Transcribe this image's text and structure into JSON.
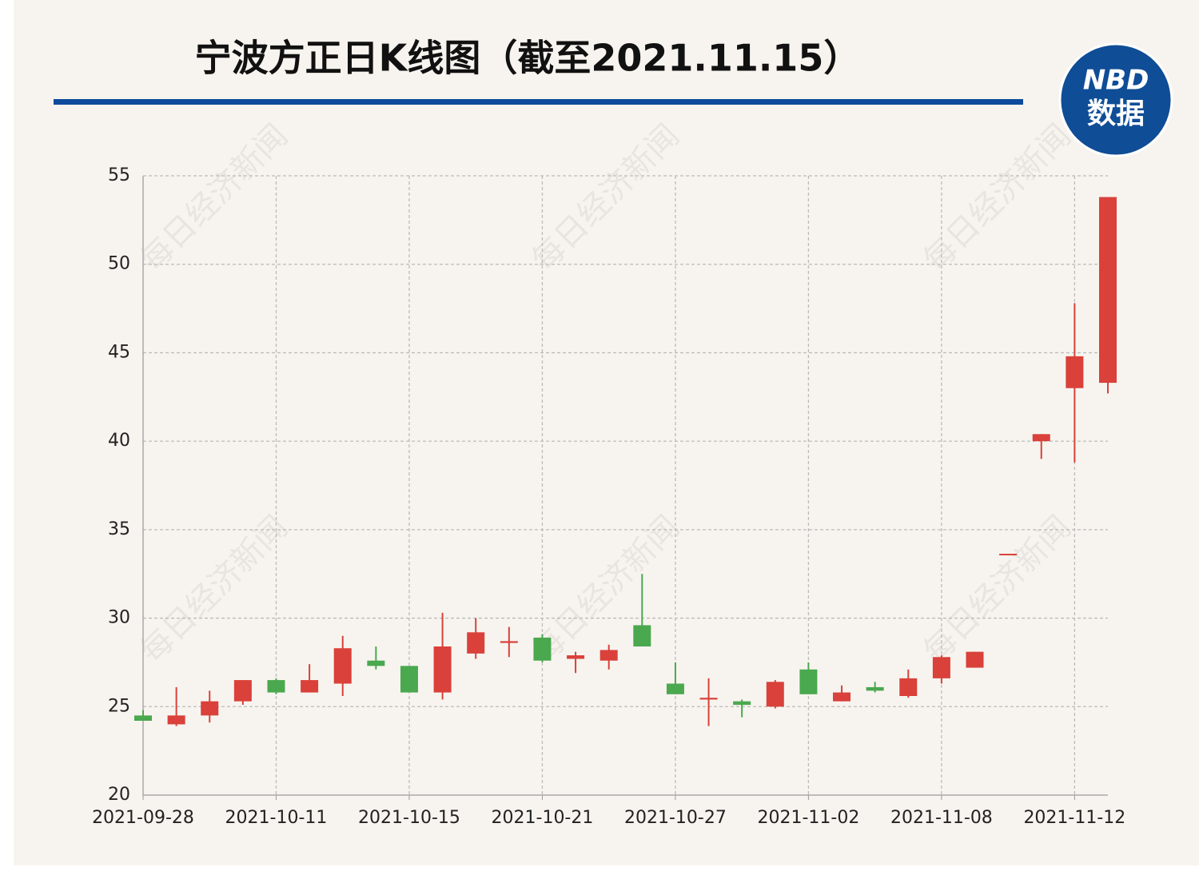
{
  "chart_data": {
    "type": "candlestick",
    "title": "宁波方正日K线图（截至2021.11.15）",
    "logo": {
      "top": "NBD",
      "bottom": "数据"
    },
    "watermark": "每日经济新闻",
    "categories": [
      "2021-09-28",
      null,
      null,
      null,
      "2021-10-11",
      null,
      null,
      null,
      "2021-10-15",
      null,
      null,
      null,
      "2021-10-21",
      null,
      null,
      null,
      "2021-10-27",
      null,
      null,
      null,
      "2021-11-02",
      null,
      null,
      null,
      "2021-11-08",
      null,
      null,
      null,
      "2021-11-12",
      null
    ],
    "open": [
      24.5,
      24.0,
      24.5,
      25.3,
      26.5,
      25.8,
      26.3,
      27.6,
      27.3,
      25.8,
      28.0,
      28.6,
      28.9,
      27.7,
      27.6,
      29.6,
      26.3,
      25.4,
      25.3,
      25.0,
      27.1,
      25.3,
      26.1,
      25.6,
      26.6,
      27.2,
      33.64,
      40.0,
      43.0,
      43.3
    ],
    "high": [
      24.8,
      26.1,
      25.9,
      26.5,
      26.6,
      27.4,
      29.0,
      28.4,
      27.3,
      30.3,
      30.0,
      29.5,
      29.1,
      28.1,
      28.5,
      32.5,
      27.5,
      26.6,
      25.4,
      26.5,
      27.5,
      26.2,
      26.4,
      27.1,
      27.9,
      28.1,
      33.64,
      40.4,
      47.8,
      53.8
    ],
    "low": [
      24.2,
      23.9,
      24.1,
      25.1,
      25.7,
      25.8,
      25.6,
      27.1,
      25.8,
      25.4,
      27.7,
      27.8,
      27.5,
      26.9,
      27.1,
      28.4,
      25.7,
      23.9,
      24.4,
      24.9,
      25.7,
      25.3,
      25.8,
      25.5,
      26.3,
      27.2,
      33.64,
      39.0,
      38.8,
      42.7
    ],
    "close": [
      24.2,
      24.5,
      25.3,
      26.5,
      25.8,
      26.5,
      28.3,
      27.3,
      25.8,
      28.4,
      29.2,
      28.7,
      27.6,
      27.9,
      28.2,
      28.4,
      25.7,
      25.5,
      25.1,
      26.4,
      25.7,
      25.8,
      25.9,
      26.6,
      27.8,
      28.1,
      33.64,
      40.4,
      44.8,
      53.8
    ],
    "up_color": "#d9413a",
    "down_color": "#4aa84f",
    "ylim": [
      20,
      55
    ],
    "yticks": [
      20,
      25,
      30,
      35,
      40,
      45,
      50,
      55
    ],
    "grid": true
  }
}
